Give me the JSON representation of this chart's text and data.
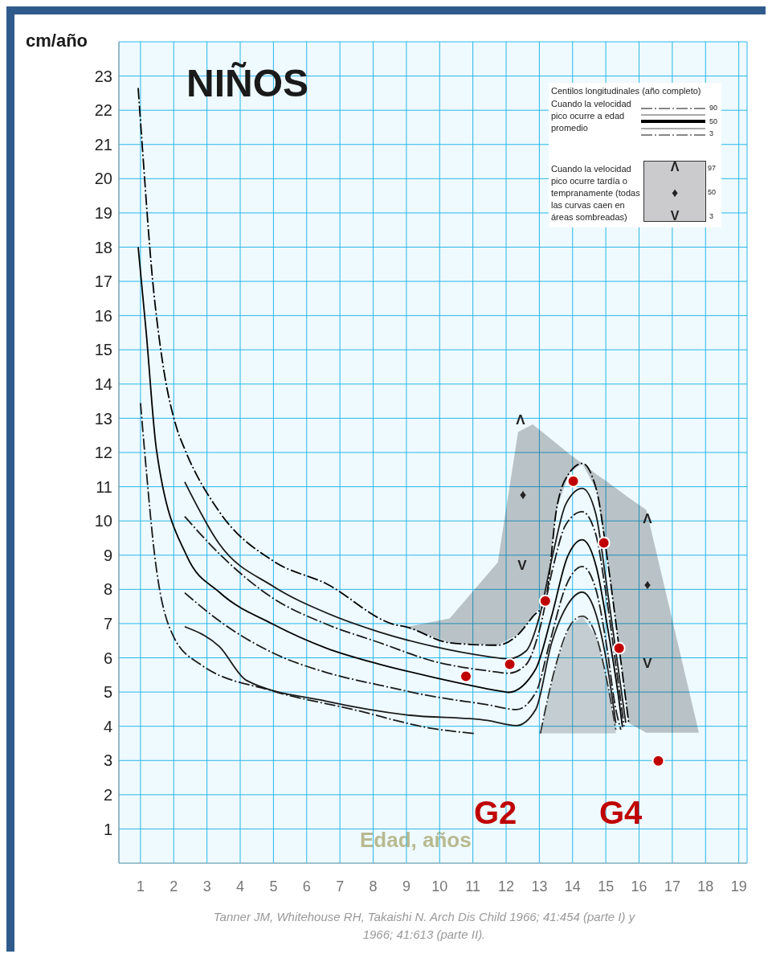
{
  "chart_data": {
    "type": "line",
    "title": "NIÑOS",
    "xlabel": "Edad, años",
    "ylabel": "cm/año",
    "xlim": [
      0.35,
      19.25
    ],
    "ylim": [
      0,
      24
    ],
    "xticks": [
      1,
      2,
      3,
      4,
      5,
      6,
      7,
      8,
      9,
      10,
      11,
      12,
      13,
      14,
      15,
      16,
      17,
      18,
      19
    ],
    "yticks": [
      1,
      2,
      3,
      4,
      5,
      6,
      7,
      8,
      9,
      10,
      11,
      12,
      13,
      14,
      15,
      16,
      17,
      18,
      19,
      20,
      21,
      22,
      23
    ],
    "grid": true,
    "marker": "none",
    "line_style": "solid",
    "series": [
      {
        "color": "#000000",
        "line_style": "dashed",
        "x": [
          0.93,
          1.05,
          1.36,
          1.65,
          2.09,
          2.33,
          3.37,
          4.99,
          6.6,
          8.61,
          9.0,
          10.3,
          11.75,
          12.36,
          12.8,
          13.18,
          13.52,
          13.9,
          14.29,
          14.72,
          15.06,
          15.38,
          15.69,
          16.22,
          17.8
        ],
        "values": [
          22.65,
          21.0,
          17.08,
          14.73,
          12.71,
          12.1,
          10.27,
          8.83,
          8.16,
          6.98,
          6.9,
          6.44,
          6.37,
          6.68,
          7.2,
          7.66,
          10.36,
          11.4,
          11.68,
          10.9,
          8.79,
          6.44,
          4.09,
          null,
          null
        ],
        "lower": [
          null,
          null,
          null,
          null,
          null,
          null,
          null,
          null,
          null,
          null,
          6.9,
          6.44,
          6.37,
          6.68,
          7.2,
          7.66,
          10.36,
          11.4,
          11.68,
          10.9,
          8.79,
          6.44,
          4.09,
          3.81,
          3.81
        ],
        "upper": [
          null,
          null,
          null,
          null,
          null,
          null,
          null,
          null,
          null,
          null,
          6.9,
          7.15,
          8.79,
          12.6,
          12.82,
          12.53,
          12.26,
          11.96,
          11.68,
          11.36,
          11.13,
          10.9,
          10.68,
          10.32,
          3.81
        ]
      },
      {
        "color": "#1a1a1a",
        "x": [
          2.33,
          3.37,
          4.99,
          6.6,
          8.2,
          9.82,
          11.44,
          12.07,
          12.6,
          13.0,
          13.4,
          13.8,
          14.29,
          14.7,
          15.0,
          15.3,
          15.6
        ],
        "values": [
          11.14,
          9.33,
          8.09,
          7.31,
          6.75,
          6.33,
          6.04,
          5.97,
          6.2,
          7.2,
          9.0,
          10.5,
          10.95,
          10.2,
          8.3,
          6.2,
          4.1
        ]
      },
      {
        "color": "#1a1a1a",
        "line_style": "dashed",
        "x": [
          2.33,
          3.37,
          4.99,
          6.6,
          8.2,
          9.82,
          11.44,
          12.07,
          12.6,
          13.0,
          13.4,
          13.8,
          14.29,
          14.7,
          15.0,
          15.3,
          15.55
        ],
        "values": [
          10.13,
          9.04,
          7.74,
          6.98,
          6.44,
          5.9,
          5.62,
          5.55,
          5.8,
          6.8,
          8.6,
          9.9,
          10.27,
          9.6,
          7.9,
          5.8,
          4.0
        ]
      },
      {
        "color": "#000000",
        "x": [
          0.93,
          1.17,
          1.48,
          2.4,
          3.37,
          4.99,
          6.6,
          8.2,
          9.82,
          11.82,
          12.07,
          12.89,
          13.37,
          13.85,
          14.29,
          14.72,
          15.06,
          15.38,
          15.5
        ],
        "values": [
          18.0,
          15.53,
          12.08,
          8.96,
          7.92,
          6.98,
          6.28,
          5.81,
          5.43,
          5.03,
          4.99,
          5.67,
          7.22,
          8.96,
          9.45,
          8.63,
          6.84,
          4.87,
          3.98
        ]
      },
      {
        "color": "#1a1a1a",
        "line_style": "dashed",
        "x": [
          2.33,
          3.37,
          4.99,
          6.6,
          8.2,
          9.82,
          11.44,
          12.31,
          12.9,
          13.3,
          13.8,
          14.29,
          14.7,
          15.0,
          15.3,
          15.45
        ],
        "values": [
          7.9,
          7.08,
          6.14,
          5.57,
          5.2,
          4.87,
          4.63,
          4.49,
          5.0,
          6.4,
          8.1,
          8.67,
          8.0,
          6.5,
          4.5,
          3.9
        ]
      },
      {
        "color": "#1a1a1a",
        "x": [
          2.33,
          3.37,
          4.19,
          6.6,
          9.02,
          11.44,
          12.31,
          12.89,
          13.37,
          13.85,
          14.29,
          14.72,
          15.06,
          15.3
        ],
        "values": [
          6.91,
          6.33,
          5.34,
          4.73,
          4.33,
          4.17,
          4.02,
          4.49,
          6.44,
          7.55,
          7.92,
          7.22,
          5.67,
          4.09
        ]
      },
      {
        "color": "#1a1a1a",
        "line_style": "dashed",
        "x": [
          1.0,
          1.12,
          1.43,
          2.0,
          2.8,
          4.99,
          7.4,
          9.82,
          11.03
        ],
        "values": [
          13.44,
          12.08,
          8.96,
          6.61,
          5.81,
          5.03,
          4.49,
          3.93,
          3.79
        ]
      },
      {
        "color": "#333333",
        "line_style": "dashed",
        "x": [
          13.03,
          13.5,
          13.9,
          14.29,
          14.72,
          15.06,
          15.3
        ],
        "values": [
          3.79,
          5.8,
          6.9,
          7.22,
          6.6,
          5.2,
          3.9
        ],
        "lower": [
          3.79,
          3.79,
          3.79,
          3.79,
          3.79,
          3.79,
          3.79
        ],
        "upper": [
          3.79,
          5.8,
          6.9,
          7.22,
          6.6,
          5.2,
          3.9
        ]
      },
      {
        "type": "scatter",
        "marker": "circle",
        "color": "#c00000",
        "x": [
          10.79,
          12.11,
          13.18,
          14.02,
          14.94,
          15.4,
          16.58
        ],
        "values": [
          5.46,
          5.81,
          7.66,
          11.16,
          9.36,
          6.28,
          2.99
        ]
      }
    ],
    "annotations": [
      "Centilos longitudinales (año completo)",
      "Cuando la velocidad pico ocurre a edad promedio",
      "90",
      "50",
      "3",
      "Cuando la velocidad pico ocurre tardía o tempranamente (todas las curvas caen en áreas sombreadas)",
      "Λ",
      "♦",
      "V",
      "97",
      "50",
      "3",
      "G2",
      "G4",
      "Λ",
      "♦",
      "V",
      "Λ",
      "♦",
      "V",
      "Tanner JM, Whitehouse RH, Takaishi N. Arch Dis Child 1966; 41:454 (parte I) y 1966; 41:613 (parte II)."
    ]
  }
}
